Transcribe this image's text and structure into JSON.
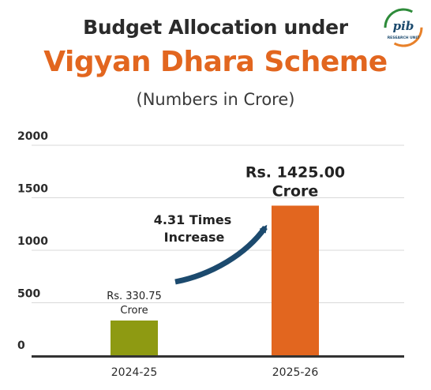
{
  "header": {
    "title_line1": "Budget Allocation under",
    "title_line2": "Vigyan Dhara Scheme",
    "subtitle": "(Numbers in Crore)"
  },
  "logo": {
    "icon": "pib-research-unit-logo",
    "text": "pib",
    "ring_text": "RESEARCH UNIT"
  },
  "colors": {
    "title_accent": "#e2661f",
    "bar_2024": "#8e9a12",
    "bar_2025": "#e2661f",
    "arrow": "#1c4a6e",
    "axis": "#333333",
    "grid": "#d9d9d9"
  },
  "chart_data": {
    "type": "bar",
    "title": "Budget Allocation under Vigyan Dhara Scheme",
    "subtitle": "(Numbers in Crore)",
    "categories": [
      "2024-25",
      "2025-26"
    ],
    "values": [
      330.75,
      1425.0
    ],
    "data_labels": [
      {
        "line1": "Rs. 330.75",
        "line2": "Crore"
      },
      {
        "line1": "Rs. 1425.00",
        "line2": "Crore"
      }
    ],
    "yticks": [
      0,
      500,
      1000,
      1500,
      2000
    ],
    "ylim": [
      0,
      2000
    ],
    "grid": true,
    "annotation": {
      "line1": "4.31 Times",
      "line2": "Increase"
    }
  }
}
